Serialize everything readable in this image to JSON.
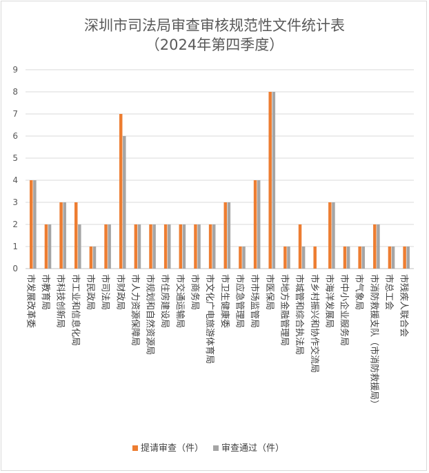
{
  "chart_data": {
    "type": "bar",
    "title": [
      "深圳市司法局审查审核规范性文件统计表",
      "（2024年第四季度）"
    ],
    "xlabel": "",
    "ylabel": "",
    "ylim": [
      0,
      9
    ],
    "yticks": [
      0,
      1,
      2,
      3,
      4,
      5,
      6,
      7,
      8,
      9
    ],
    "grid": true,
    "legend_position": "bottom",
    "categories": [
      "市发展改革委",
      "市教育局",
      "市科技创新局",
      "市工业和信息化局",
      "市民政局",
      "市司法局",
      "市财政局",
      "市人力资源保障局",
      "市规划和自然资源局",
      "市住房建设局",
      "市交通运输局",
      "市商务局",
      "市文化广电旅游体育局",
      "市卫生健康委",
      "市应急管理局",
      "市市场监管局",
      "市医保局",
      "市地方金融管理局",
      "市城管和综合执法局",
      "市乡村振兴和协作交流局",
      "市海洋发展局",
      "市中小企业服务局",
      "市气象局",
      "市消防救援支队（市消防救援局）",
      "市总工会",
      "市残疾人联合会"
    ],
    "series": [
      {
        "name": "提请审查（件）",
        "color": "#ED7D31",
        "values": [
          4,
          2,
          3,
          3,
          1,
          2,
          7,
          2,
          2,
          2,
          2,
          2,
          2,
          3,
          1,
          4,
          8,
          1,
          2,
          1,
          3,
          1,
          1,
          2,
          1,
          1
        ]
      },
      {
        "name": "审查通过（件）",
        "color": "#A5A5A5",
        "values": [
          4,
          2,
          3,
          2,
          1,
          2,
          6,
          2,
          2,
          2,
          2,
          2,
          2,
          3,
          1,
          4,
          8,
          1,
          1,
          0,
          3,
          1,
          1,
          2,
          1,
          1
        ]
      }
    ]
  }
}
